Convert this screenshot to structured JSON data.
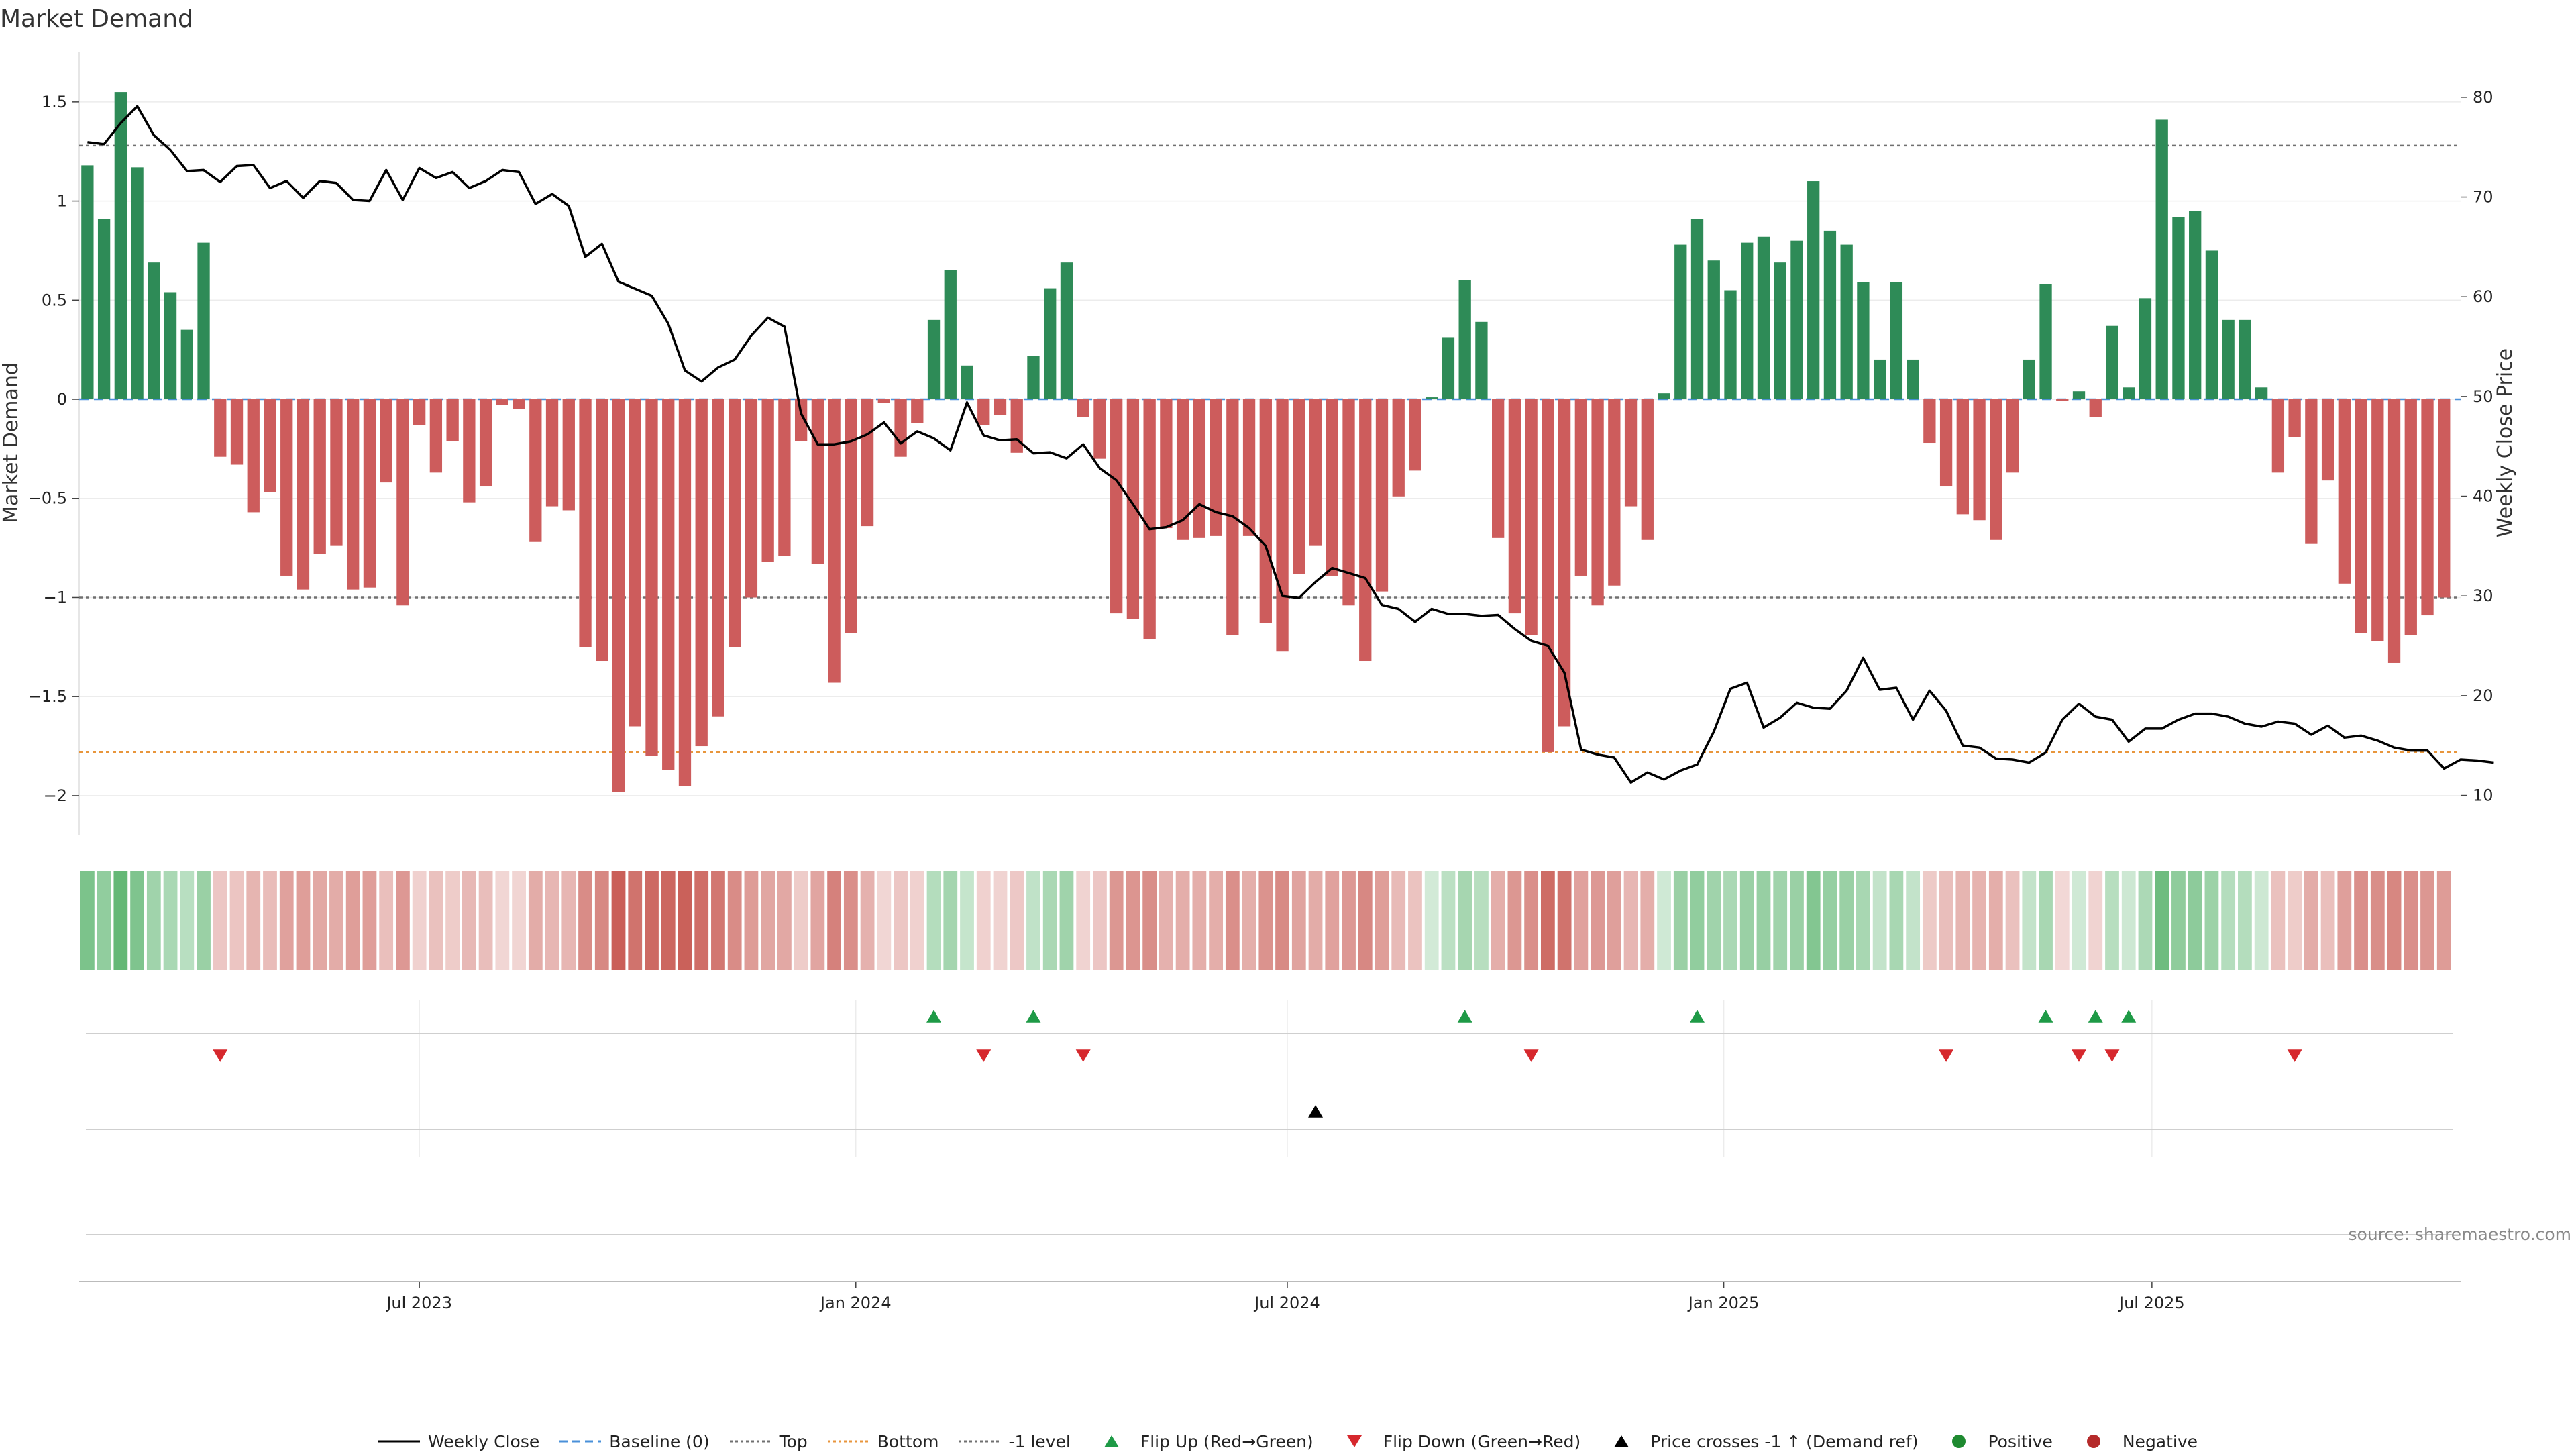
{
  "chart_data": {
    "type": "bar",
    "title": "Market Demand",
    "ylabel": "Market Demand",
    "y2label": "Weekly Close Price",
    "ylim": [
      -2.2,
      1.75
    ],
    "y2lim": [
      6,
      84.5
    ],
    "yticks": [
      {
        "value": 1.5,
        "label": "1.5"
      },
      {
        "value": 1,
        "label": "1"
      },
      {
        "value": 0.5,
        "label": "0.5"
      },
      {
        "value": 0,
        "label": "0"
      },
      {
        "value": -0.5,
        "label": "−0.5"
      },
      {
        "value": -1,
        "label": "−1"
      },
      {
        "value": -1.5,
        "label": "−1.5"
      },
      {
        "value": -2,
        "label": "−2"
      }
    ],
    "y2ticks": [
      80,
      70,
      60,
      50,
      40,
      30,
      20,
      10
    ],
    "xlim": [
      0,
      143.5
    ],
    "xticks": [
      {
        "value": 20.5,
        "label": "Jul 2023"
      },
      {
        "value": 46.8,
        "label": "Jan 2024"
      },
      {
        "value": 72.8,
        "label": "Jul 2024"
      },
      {
        "value": 99.1,
        "label": "Jan 2025"
      },
      {
        "value": 124.9,
        "label": "Jul 2025"
      }
    ],
    "reference_lines": [
      {
        "name": "Top",
        "value": 1.28,
        "color": "#707070"
      },
      {
        "name": "-1 level",
        "value": -1.0,
        "color": "#707070"
      },
      {
        "name": "Bottom",
        "value": -1.78,
        "color": "#e8963c"
      }
    ],
    "demand": [
      1.18,
      0.91,
      1.55,
      1.17,
      0.69,
      0.54,
      0.35,
      0.79,
      -0.29,
      -0.33,
      -0.57,
      -0.47,
      -0.89,
      -0.96,
      -0.78,
      -0.74,
      -0.96,
      -0.95,
      -0.42,
      -1.04,
      -0.13,
      -0.37,
      -0.21,
      -0.52,
      -0.44,
      -0.03,
      -0.05,
      -0.72,
      -0.54,
      -0.56,
      -1.25,
      -1.32,
      -1.98,
      -1.65,
      -1.8,
      -1.87,
      -1.95,
      -1.75,
      -1.6,
      -1.25,
      -1.0,
      -0.82,
      -0.79,
      -0.21,
      -0.83,
      -1.43,
      -1.18,
      -0.64,
      -0.02,
      -0.29,
      -0.12,
      0.4,
      0.65,
      0.17,
      -0.13,
      -0.08,
      -0.27,
      0.22,
      0.56,
      0.69,
      -0.09,
      -0.3,
      -1.08,
      -1.11,
      -1.21,
      -0.65,
      -0.71,
      -0.7,
      -0.69,
      -1.19,
      -0.69,
      -1.13,
      -1.27,
      -0.88,
      -0.74,
      -0.89,
      -1.04,
      -1.32,
      -0.97,
      -0.49,
      -0.36,
      0.01,
      0.31,
      0.6,
      0.39,
      -0.7,
      -1.08,
      -1.19,
      -1.78,
      -1.65,
      -0.89,
      -1.04,
      -0.94,
      -0.54,
      -0.71,
      0.03,
      0.78,
      0.91,
      0.7,
      0.55,
      0.79,
      0.82,
      0.69,
      0.8,
      1.1,
      0.85,
      0.78,
      0.59,
      0.2,
      0.59,
      0.2,
      -0.22,
      -0.44,
      -0.58,
      -0.61,
      -0.71,
      -0.37,
      0.2,
      0.58,
      -0.01,
      0.04,
      -0.09,
      0.37,
      0.06,
      0.51,
      1.41,
      0.92,
      0.95,
      0.75,
      0.4,
      0.4,
      0.06,
      -0.37,
      -0.19,
      -0.73,
      -0.41,
      -0.93,
      -1.18,
      -1.22,
      -1.33,
      -1.19,
      -1.09,
      -1.0
    ],
    "close_price": [
      75.5,
      75.3,
      77.4,
      79.1,
      76.2,
      74.7,
      72.6,
      72.7,
      71.5,
      73.1,
      73.2,
      70.9,
      71.6,
      69.9,
      71.6,
      71.4,
      69.7,
      69.6,
      72.7,
      69.7,
      72.9,
      71.9,
      72.5,
      70.9,
      71.6,
      72.7,
      72.5,
      69.3,
      70.3,
      69.1,
      64.0,
      65.3,
      61.5,
      60.8,
      60.1,
      57.3,
      52.6,
      51.5,
      52.9,
      53.7,
      56.1,
      57.9,
      57.0,
      48.3,
      45.2,
      45.2,
      45.5,
      46.2,
      47.4,
      45.3,
      46.5,
      45.8,
      44.6,
      49.4,
      46.1,
      45.6,
      45.7,
      44.3,
      44.4,
      43.8,
      45.2,
      42.8,
      41.6,
      39.2,
      36.7,
      36.9,
      37.6,
      39.2,
      38.4,
      38.0,
      36.8,
      35.0,
      30.0,
      29.8,
      31.4,
      32.8,
      32.3,
      31.8,
      29.1,
      28.7,
      27.4,
      28.7,
      28.2,
      28.2,
      28.0,
      28.1,
      26.7,
      25.5,
      25.0,
      22.3,
      14.6,
      14.1,
      13.8,
      11.3,
      12.3,
      11.6,
      12.5,
      13.1,
      16.4,
      20.7,
      21.3,
      16.8,
      17.8,
      19.3,
      18.8,
      18.7,
      20.5,
      23.8,
      20.6,
      20.8,
      17.6,
      20.5,
      18.5,
      15.0,
      14.8,
      13.7,
      13.6,
      13.3,
      14.3,
      17.6,
      19.2,
      17.9,
      17.6,
      15.4,
      16.7,
      16.7,
      17.6,
      18.2,
      18.2,
      17.9,
      17.2,
      16.9,
      17.4,
      17.2,
      16.1,
      17.0,
      15.8,
      16.0,
      15.5,
      14.8,
      14.5,
      14.5,
      12.7,
      13.6,
      13.5,
      13.3
    ],
    "flip_up": [
      51,
      57,
      83,
      97,
      118,
      121,
      123
    ],
    "flip_down": [
      8,
      54,
      60,
      87,
      112,
      120,
      122,
      133
    ],
    "price_cross": [
      74
    ],
    "source": "source: sharemaestro.com",
    "colors": {
      "positive": "#2e8b57",
      "negative": "#cd5c5c",
      "price": "#000000",
      "flip_up": "#1e9a46",
      "flip_down": "#d6282d",
      "cross": "#000000",
      "grid": "#ececec",
      "strip_positive_rgb": [
        48,
        160,
        72
      ],
      "strip_negative_rgb": [
        196,
        78,
        70
      ]
    }
  },
  "legend": [
    {
      "label": "Weekly Close",
      "symbol": "line-solid",
      "color": "#000000"
    },
    {
      "label": "Baseline (0)",
      "symbol": "line-dashed",
      "color": "#4a90d9"
    },
    {
      "label": "Top",
      "symbol": "line-dotted",
      "color": "#707070"
    },
    {
      "label": "Bottom",
      "symbol": "line-dotted",
      "color": "#e8963c"
    },
    {
      "label": "-1 level",
      "symbol": "line-dotted",
      "color": "#707070"
    },
    {
      "label": "Flip Up (Red→Green)",
      "symbol": "triangle-up",
      "color": "#1e9a46"
    },
    {
      "label": "Flip Down (Green→Red)",
      "symbol": "triangle-down",
      "color": "#d6282d"
    },
    {
      "label": "Price crosses -1 ↑ (Demand ref)",
      "symbol": "triangle-up",
      "color": "#000000"
    },
    {
      "label": "Positive",
      "symbol": "circle",
      "color": "#1e8a30"
    },
    {
      "label": "Negative",
      "symbol": "circle",
      "color": "#b52a2a"
    }
  ]
}
